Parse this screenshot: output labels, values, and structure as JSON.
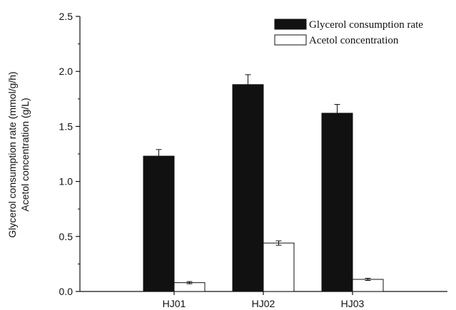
{
  "chart_data": {
    "type": "bar",
    "categories": [
      "HJ01",
      "HJ02",
      "HJ03"
    ],
    "series": [
      {
        "name": "Glycerol consumption rate",
        "values": [
          1.23,
          1.88,
          1.62
        ],
        "errors": [
          0.06,
          0.09,
          0.08
        ],
        "color": "#111111"
      },
      {
        "name": "Acetol concentration",
        "values": [
          0.08,
          0.44,
          0.11
        ],
        "errors": [
          0.01,
          0.02,
          0.01
        ],
        "color": "#ffffff"
      }
    ],
    "ylabel_line1": "Glycerol consumption rate (mmol/g/h)",
    "ylabel_line2": "Acetol concentration (g/L)",
    "xlabel": "",
    "ylim": [
      0,
      2.5
    ],
    "yticks": [
      "0.0",
      "0.5",
      "1.0",
      "1.5",
      "2.0",
      "2.5"
    ],
    "legend_position": "top-right",
    "grid": false
  }
}
